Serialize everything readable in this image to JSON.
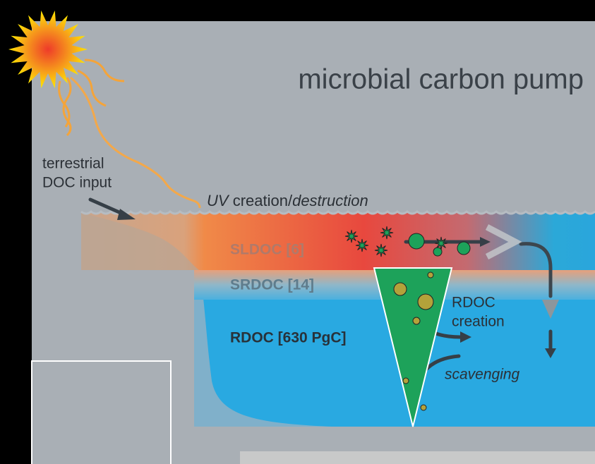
{
  "title": "microbial carbon pump",
  "labels": {
    "terrestrial": [
      "terrestrial",
      "DOC input"
    ],
    "uv": {
      "uv": "UV",
      "creation": "creation/",
      "destruction": "destruction"
    },
    "sldoc": "SLDOC [6]",
    "srdoc": "SRDOC [14]",
    "rdoc": "RDOC [630 PgC]",
    "rdoc_creation": [
      "RDOC",
      "creation"
    ],
    "scavenging": "scavenging"
  }
}
